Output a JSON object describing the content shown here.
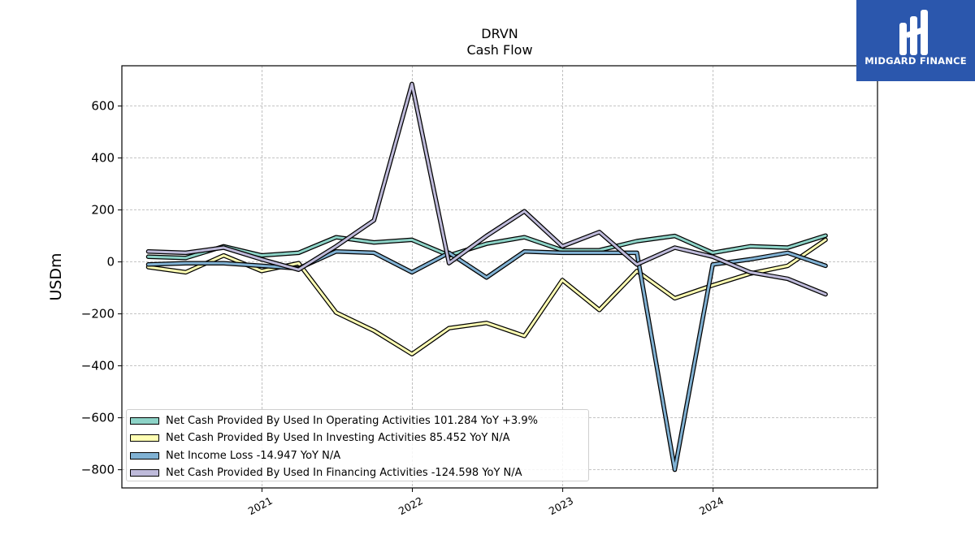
{
  "chart_data": {
    "type": "line",
    "title": "DRVN",
    "subtitle": "Cash Flow",
    "xlabel": "",
    "ylabel": "USDm",
    "xlim": [
      "2020-01-27",
      "2025-02-03"
    ],
    "ylim": [
      -870,
      755
    ],
    "yticks": [
      -800,
      -600,
      -400,
      -200,
      0,
      200,
      400,
      600
    ],
    "ytick_labels": [
      "−800",
      "−600",
      "−400",
      "−200",
      "0",
      "200",
      "400",
      "600"
    ],
    "xticks": [
      "2021-01-01",
      "2022-01-01",
      "2023-01-01",
      "2024-01-01"
    ],
    "xtick_labels": [
      "2021",
      "2022",
      "2023",
      "2024"
    ],
    "grid": true,
    "legend_position": "lower-left",
    "x": [
      "2020-03-31",
      "2020-06-30",
      "2020-09-30",
      "2020-12-31",
      "2021-03-31",
      "2021-06-30",
      "2021-09-30",
      "2021-12-31",
      "2022-03-31",
      "2022-06-30",
      "2022-09-30",
      "2022-12-31",
      "2023-03-31",
      "2023-06-30",
      "2023-09-30",
      "2023-12-31",
      "2024-03-31",
      "2024-06-30",
      "2024-09-30"
    ],
    "series": [
      {
        "name": "Net Cash Provided By Used In Operating Activities",
        "legend": "Net Cash Provided By Used In Operating Activities  101.284 YoY +3.9%",
        "color": "#8dd3c7",
        "values": [
          20,
          15,
          60,
          25,
          35,
          95,
          75,
          85,
          25,
          70,
          95,
          45,
          45,
          80,
          100,
          35,
          60,
          55,
          101.284
        ]
      },
      {
        "name": "Net Cash Provided By Used In Investing Activities",
        "legend": "Net Cash Provided By Used In Investing Activities  85.452 YoY N/A",
        "color": "#ffffb3",
        "values": [
          -20,
          -40,
          25,
          -35,
          -5,
          -195,
          -265,
          -355,
          -255,
          -235,
          -285,
          -70,
          -185,
          -35,
          -140,
          -90,
          -45,
          -15,
          85.452
        ]
      },
      {
        "name": "Net Income Loss",
        "legend": "Net Income Loss  -14.947 YoY N/A",
        "color": "#80b1d3",
        "values": [
          -10,
          -5,
          -5,
          -15,
          -25,
          40,
          35,
          -40,
          35,
          -60,
          40,
          35,
          35,
          35,
          -800,
          -10,
          10,
          35,
          -14.947
        ]
      },
      {
        "name": "Net Cash Provided By Used In Financing Activities",
        "legend": "Net Cash Provided By Used In Financing Activities  -124.598 YoY N/A",
        "color": "#bebada",
        "values": [
          40,
          35,
          55,
          10,
          -30,
          60,
          160,
          685,
          -5,
          100,
          195,
          60,
          115,
          -10,
          55,
          20,
          -40,
          -65,
          -124.598
        ]
      }
    ]
  },
  "logo": {
    "text": "MIDGARD FINANCE",
    "color": "#2b57ad"
  }
}
